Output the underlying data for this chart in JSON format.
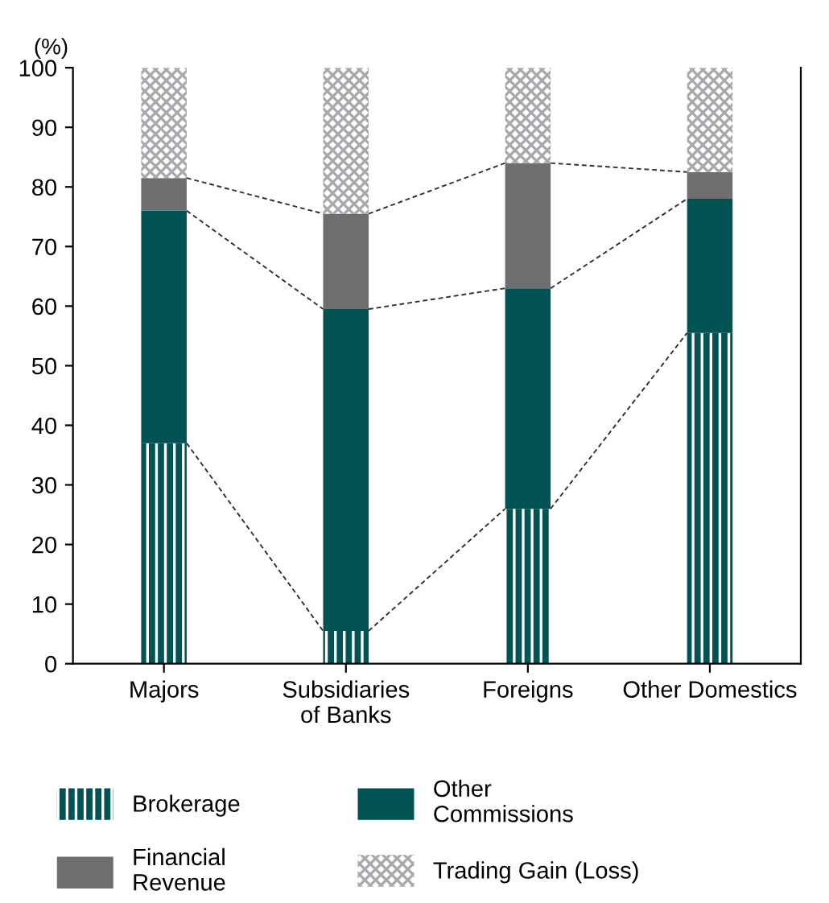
{
  "chart_data": {
    "type": "bar",
    "stacked": true,
    "ylabel": "(%)",
    "categories": [
      "Majors",
      "Subsidiaries\nof Banks",
      "Foreigns",
      "Other Domestics"
    ],
    "series": [
      {
        "name": "Brokerage",
        "color": "#005352",
        "values": [
          37,
          5.5,
          26,
          55.5
        ]
      },
      {
        "name": "Other\nCommissions",
        "color": "#005352",
        "values": [
          39,
          54,
          37,
          22.5
        ]
      },
      {
        "name": "Financial\nRevenue",
        "color": "#6d6e70",
        "values": [
          5.5,
          16,
          21,
          4.5
        ]
      },
      {
        "name": "Trading Gain (Loss)",
        "color": "#a7a9ac",
        "values": [
          18.5,
          24.5,
          16,
          17.5
        ]
      }
    ],
    "ylim": [
      0,
      100
    ],
    "yticks": [
      0,
      10,
      20,
      30,
      40,
      50,
      60,
      70,
      80,
      90,
      100
    ],
    "grid": false,
    "legend": "bottom"
  }
}
